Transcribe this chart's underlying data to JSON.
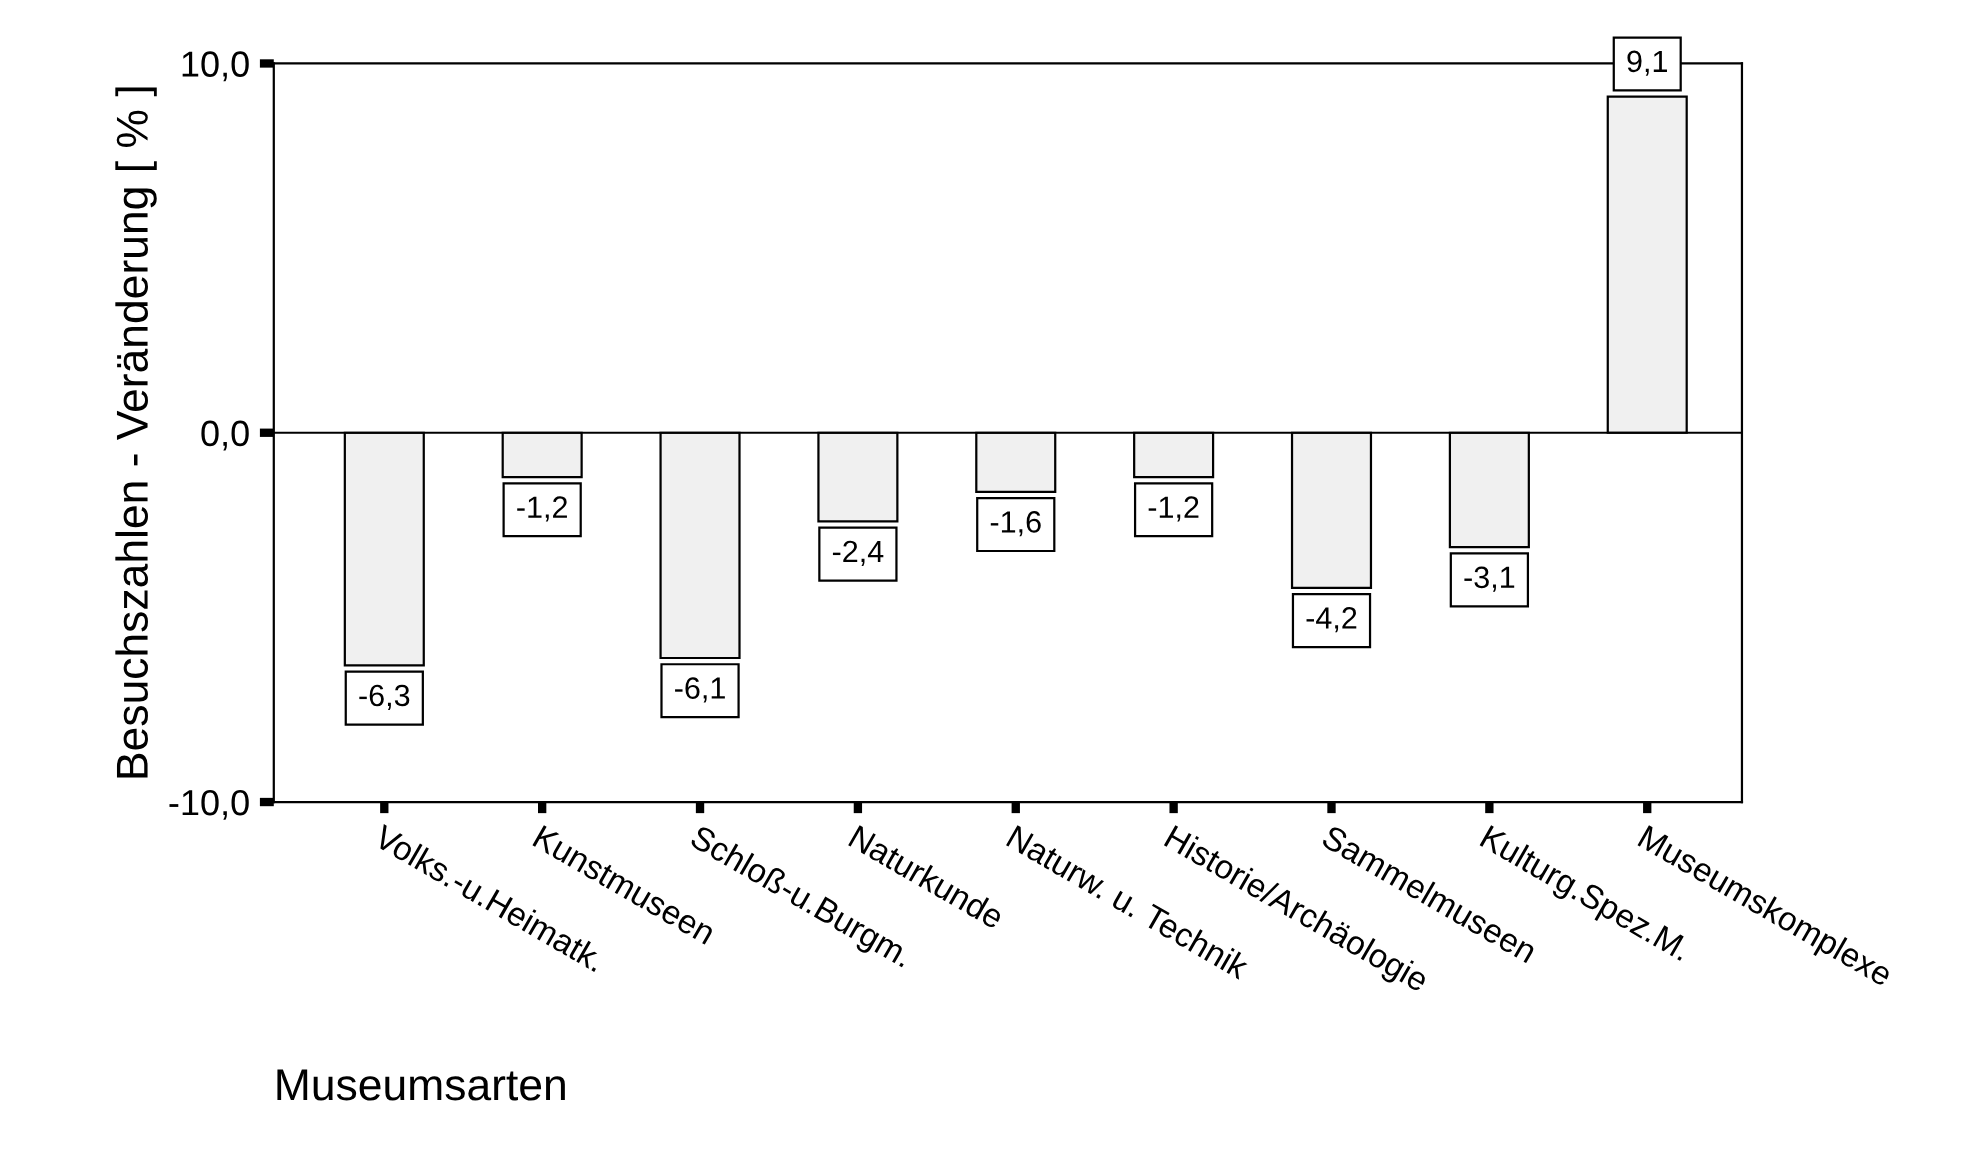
{
  "chart_data": {
    "type": "bar",
    "xlabel": "Museumsarten",
    "ylabel": "Besuchszahlen - Veränderung [ % ]",
    "categories": [
      "Volks.-u.Heimatk.",
      "Kunstmuseen",
      "Schloß-u.Burgm.",
      "Naturkunde",
      "Naturw. u. Technik",
      "Historie/Archäologie",
      "Sammelmuseen",
      "Kulturg.Spez.M.",
      "Museumskomplexe"
    ],
    "values": [
      -6.3,
      -1.2,
      -6.1,
      -2.4,
      -1.6,
      -1.2,
      -4.2,
      -3.1,
      9.1
    ],
    "value_labels": [
      "-6,3",
      "-1,2",
      "-6,1",
      "-2,4",
      "-1,6",
      "-1,2",
      "-4,2",
      "-3,1",
      "9,1"
    ],
    "color": "#f0f0f0",
    "ylim": [
      -10,
      10
    ],
    "yticks": [
      {
        "value": -10,
        "label": "-10,0"
      },
      {
        "value": 0,
        "label": "0,0"
      },
      {
        "value": 10,
        "label": "10,0"
      }
    ],
    "ref_lines": [
      {
        "axis": "y",
        "value": 0,
        "color": "#000000"
      }
    ],
    "grid": false,
    "legend": false
  }
}
